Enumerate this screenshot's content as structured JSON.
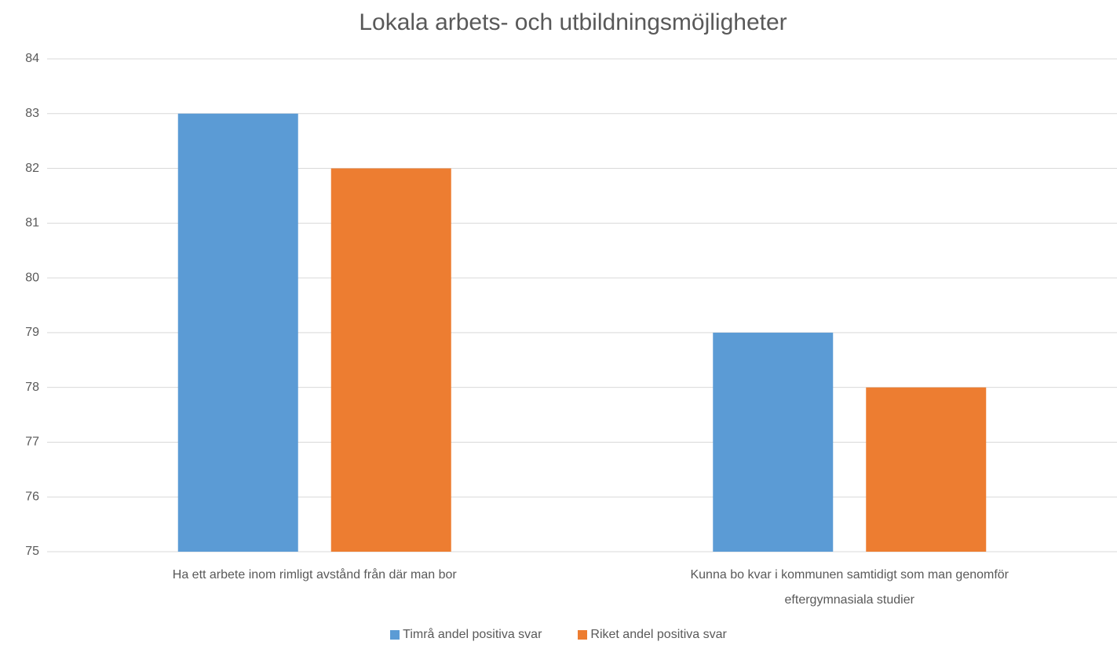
{
  "chart_data": {
    "type": "bar",
    "title": "Lokala arbets- och utbildningsmöjligheter",
    "categories": [
      "Ha ett arbete inom rimligt avstånd från där man bor",
      "Kunna bo kvar i kommunen samtidigt som man genomför eftergymnasiala studier"
    ],
    "series": [
      {
        "name": "Timrå andel positiva svar",
        "color": "#5b9bd5",
        "values": [
          83,
          79
        ]
      },
      {
        "name": "Riket andel positiva svar",
        "color": "#ed7d31",
        "values": [
          82,
          78
        ]
      }
    ],
    "ylim": [
      75,
      84
    ],
    "yticks": [
      75,
      76,
      77,
      78,
      79,
      80,
      81,
      82,
      83,
      84
    ],
    "grid": true,
    "legend": "bottom"
  }
}
